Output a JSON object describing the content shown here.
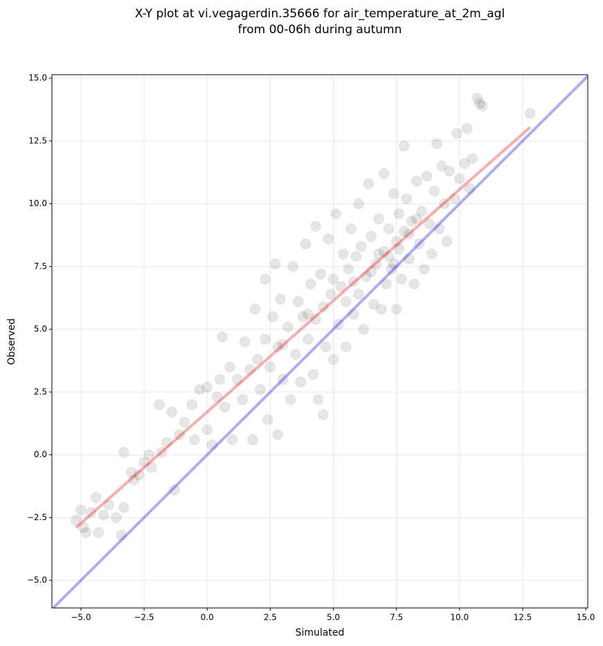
{
  "chart_data": {
    "type": "scatter",
    "title": [
      "X-Y plot at vi.vegagerdin.35666 for air_temperature_at_2m_agl",
      "from 00-06h during autumn"
    ],
    "xlabel": "Simulated",
    "ylabel": "Observed",
    "xlim": [
      -6.15,
      15.08
    ],
    "ylim": [
      -6.1,
      15.14
    ],
    "xticks": [
      {
        "value": -5,
        "label": "−5.0"
      },
      {
        "value": -2.5,
        "label": "−2.5"
      },
      {
        "value": 0,
        "label": "0.0"
      },
      {
        "value": 2.5,
        "label": "2.5"
      },
      {
        "value": 5,
        "label": "5.0"
      },
      {
        "value": 7.5,
        "label": "7.5"
      },
      {
        "value": 10,
        "label": "10.0"
      },
      {
        "value": 12.5,
        "label": "12.5"
      },
      {
        "value": 15,
        "label": "15.0"
      }
    ],
    "yticks": [
      {
        "value": -5,
        "label": "−5.0"
      },
      {
        "value": -2.5,
        "label": "−2.5"
      },
      {
        "value": 0,
        "label": "0.0"
      },
      {
        "value": 2.5,
        "label": "2.5"
      },
      {
        "value": 5,
        "label": "5.0"
      },
      {
        "value": 7.5,
        "label": "7.5"
      },
      {
        "value": 10,
        "label": "10.0"
      },
      {
        "value": 12.5,
        "label": "12.5"
      },
      {
        "value": 15,
        "label": "15.0"
      }
    ],
    "grid": true,
    "series": [
      {
        "color": "#000000",
        "x": [
          -5.2,
          -5.0,
          -4.9,
          -4.8,
          -4.6,
          -4.4,
          -4.3,
          -4.1,
          -3.9,
          -3.6,
          -3.4,
          -3.3,
          -3.3,
          -3.0,
          -2.9,
          -2.7,
          -2.5,
          -2.3,
          -2.2,
          -1.9,
          -1.8,
          -1.6,
          -1.4,
          -1.3,
          -1.1,
          -0.9,
          -0.6,
          -0.5,
          -0.3,
          0.0,
          0.0,
          0.2,
          0.4,
          0.5,
          0.6,
          0.7,
          0.9,
          1.0,
          1.2,
          1.4,
          1.5,
          1.7,
          1.8,
          1.9,
          2.0,
          2.1,
          2.3,
          2.3,
          2.4,
          2.5,
          2.6,
          2.7,
          2.8,
          2.8,
          2.9,
          3.0,
          3.2,
          3.3,
          3.4,
          3.5,
          3.6,
          3.7,
          3.8,
          3.9,
          4.0,
          4.1,
          4.2,
          4.3,
          4.3,
          4.4,
          4.5,
          4.6,
          4.6,
          4.7,
          4.8,
          4.9,
          5.0,
          5.0,
          5.1,
          5.2,
          5.3,
          5.4,
          5.5,
          5.5,
          5.6,
          5.7,
          5.8,
          5.9,
          6.0,
          6.0,
          6.1,
          6.2,
          6.3,
          6.4,
          6.5,
          6.6,
          6.7,
          6.8,
          6.9,
          7.0,
          7.0,
          7.1,
          7.2,
          7.3,
          7.4,
          7.5,
          7.5,
          7.6,
          7.7,
          7.8,
          7.8,
          7.9,
          8.0,
          8.1,
          8.2,
          8.3,
          8.4,
          8.5,
          8.6,
          8.7,
          8.8,
          8.9,
          9.0,
          9.1,
          9.2,
          9.3,
          9.4,
          9.5,
          9.6,
          9.8,
          9.9,
          10.0,
          10.2,
          10.3,
          10.4,
          10.5,
          10.7,
          10.8,
          10.9,
          12.8,
          7.2,
          7.6,
          8.0,
          6.5,
          5.8,
          6.8,
          7.4,
          8.3,
          4.0,
          3.0
        ],
        "y": [
          -2.6,
          -2.2,
          -2.9,
          -3.1,
          -2.3,
          -1.7,
          -3.1,
          -2.4,
          -2.0,
          -2.5,
          -3.2,
          0.1,
          -2.1,
          -0.7,
          -1.0,
          -0.8,
          -0.3,
          0.0,
          -0.5,
          2.0,
          0.1,
          0.5,
          1.7,
          -1.4,
          0.8,
          1.3,
          2.0,
          0.6,
          2.6,
          2.7,
          1.0,
          0.4,
          2.3,
          3.0,
          4.7,
          1.9,
          3.5,
          0.6,
          3.0,
          2.2,
          4.5,
          3.4,
          0.6,
          5.8,
          3.8,
          2.6,
          7.0,
          4.6,
          1.4,
          3.5,
          5.5,
          7.6,
          0.8,
          4.3,
          6.2,
          3.0,
          5.1,
          2.2,
          7.5,
          4.0,
          6.1,
          2.9,
          5.5,
          8.4,
          4.6,
          6.8,
          3.2,
          9.1,
          5.4,
          2.2,
          7.2,
          1.6,
          5.9,
          4.3,
          8.6,
          6.4,
          3.8,
          7.0,
          9.6,
          5.2,
          6.7,
          8.0,
          4.3,
          6.1,
          7.4,
          9.0,
          5.6,
          7.9,
          6.4,
          10.0,
          8.3,
          5.0,
          7.1,
          10.8,
          8.7,
          6.0,
          7.6,
          9.4,
          5.8,
          8.1,
          11.2,
          6.8,
          9.0,
          7.4,
          10.4,
          8.5,
          5.8,
          9.6,
          7.0,
          12.3,
          8.9,
          10.2,
          7.8,
          9.3,
          6.8,
          10.9,
          8.4,
          9.7,
          7.4,
          11.1,
          9.2,
          8.0,
          10.5,
          12.4,
          9.0,
          11.5,
          10.0,
          8.5,
          11.3,
          10.2,
          12.8,
          11.0,
          11.6,
          13.0,
          10.6,
          11.8,
          14.2,
          14.0,
          13.9,
          13.6,
          7.9,
          8.2,
          8.8,
          7.3,
          6.9,
          8.0,
          7.6,
          9.4,
          5.6,
          4.4
        ]
      }
    ],
    "lines": [
      {
        "color": "#0000ff",
        "x": [
          -6.15,
          15.08
        ],
        "y": [
          -6.15,
          15.08
        ]
      },
      {
        "color": "#ff0000",
        "x": [
          -5.2,
          12.8
        ],
        "y": [
          -2.9,
          13.05
        ]
      }
    ]
  }
}
